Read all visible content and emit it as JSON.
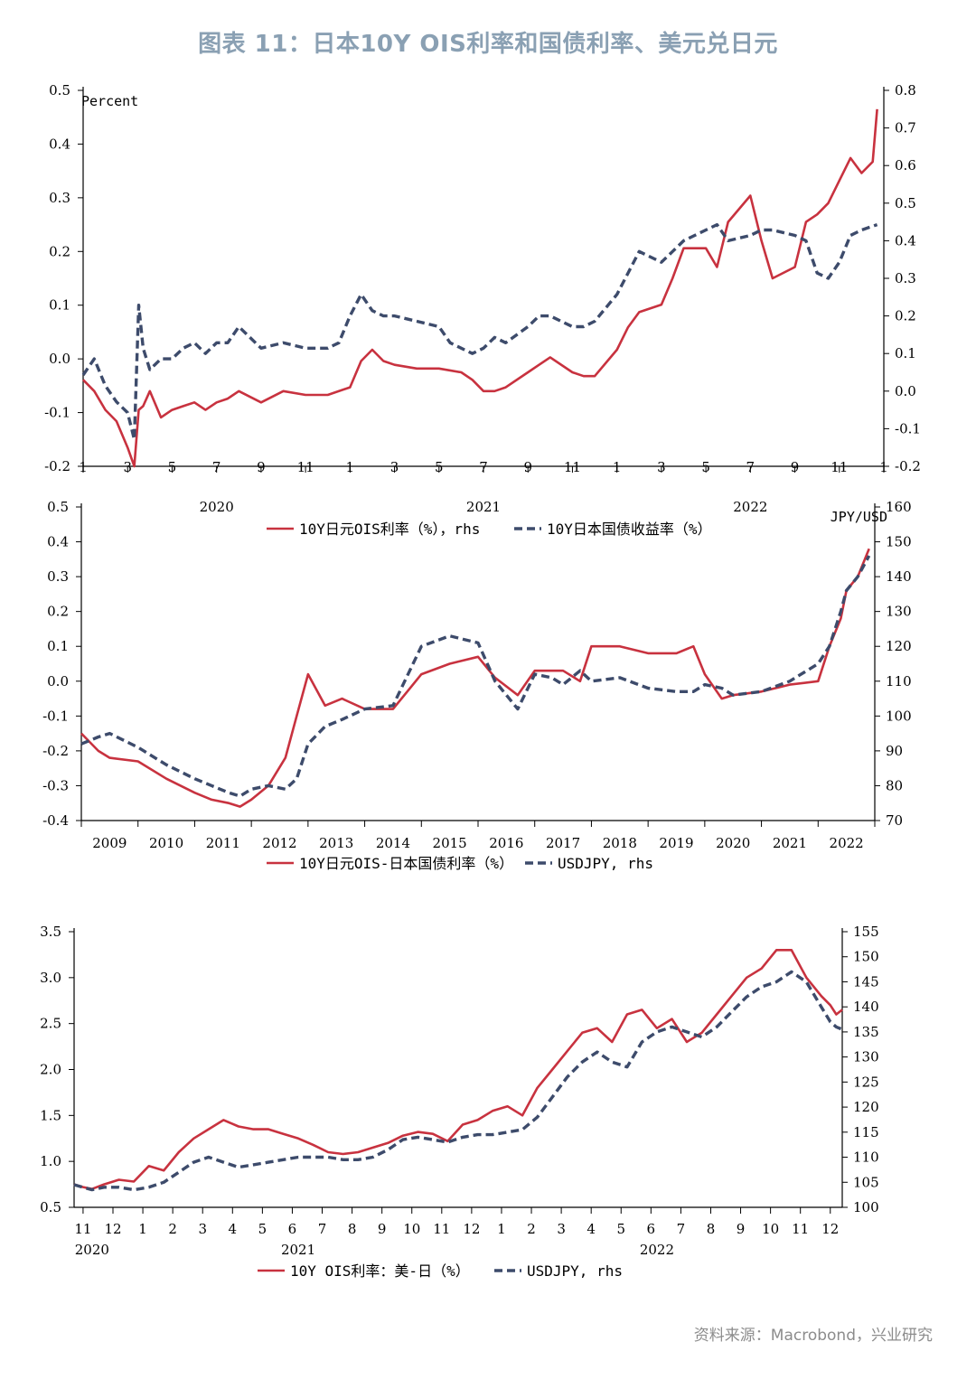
{
  "figure_title": "图表 11：日本10Y OIS利率和国债利率、美元兑日元",
  "source": "资料来源：Macrobond，兴业研究",
  "colors": {
    "red": "#c8323f",
    "blue": "#3d4b6b",
    "title": "#8aa0b3",
    "source": "#8c8c8c"
  },
  "chart_data": [
    {
      "type": "line",
      "left_unit_label": "Percent",
      "right_unit_label": "",
      "ylim": [
        -0.2,
        0.5
      ],
      "y2lim": [
        -0.2,
        0.8
      ],
      "yticks": [
        "0.5",
        "0.4",
        "0.3",
        "0.2",
        "0.1",
        "0.0",
        "-0.1",
        "-0.2"
      ],
      "y2ticks": [
        "0.8",
        "0.7",
        "0.6",
        "0.5",
        "0.4",
        "0.3",
        "0.2",
        "0.1",
        "0.0",
        "-0.1",
        "-0.2"
      ],
      "xlim": [
        0,
        36
      ],
      "xticks": [
        "1",
        "3",
        "5",
        "7",
        "9",
        "11",
        "1",
        "3",
        "5",
        "7",
        "9",
        "11",
        "1",
        "3",
        "5",
        "7",
        "9",
        "11",
        "1"
      ],
      "years": [
        {
          "label": "2020",
          "x": 6
        },
        {
          "label": "2021",
          "x": 18
        },
        {
          "label": "2022",
          "x": 30
        }
      ],
      "series": [
        {
          "name": "10Y日元OIS利率（%），rhs",
          "axis": "right",
          "style": "solid",
          "x": [
            0,
            0.5,
            1,
            1.5,
            2,
            2.3,
            2.5,
            2.7,
            3,
            3.5,
            4,
            4.5,
            5,
            5.5,
            6,
            6.5,
            7,
            8,
            9,
            10,
            11,
            12,
            12.5,
            13,
            13.5,
            14,
            15,
            16,
            17,
            17.5,
            18,
            18.5,
            19,
            20,
            20.5,
            21,
            22,
            22.5,
            23,
            24,
            24.5,
            25,
            26,
            26.5,
            27,
            28,
            28.5,
            29,
            30,
            30.5,
            31,
            32,
            32.5,
            33,
            33.5,
            34,
            34.5,
            35,
            35.5,
            35.7
          ],
          "y": [
            0.03,
            0.0,
            -0.05,
            -0.08,
            -0.15,
            -0.2,
            -0.05,
            -0.04,
            0.0,
            -0.07,
            -0.05,
            -0.04,
            -0.03,
            -0.05,
            -0.03,
            -0.02,
            0.0,
            -0.03,
            0.0,
            -0.01,
            -0.01,
            0.01,
            0.08,
            0.11,
            0.08,
            0.07,
            0.06,
            0.06,
            0.05,
            0.03,
            0.0,
            0.0,
            0.01,
            0.05,
            0.07,
            0.09,
            0.05,
            0.04,
            0.04,
            0.11,
            0.17,
            0.21,
            0.23,
            0.3,
            0.38,
            0.38,
            0.33,
            0.45,
            0.52,
            0.4,
            0.3,
            0.33,
            0.45,
            0.47,
            0.5,
            0.56,
            0.62,
            0.58,
            0.61,
            0.75
          ]
        },
        {
          "name": "10Y日本国债收益率（%）",
          "axis": "left",
          "style": "dash",
          "x": [
            0,
            0.5,
            1,
            1.5,
            2,
            2.3,
            2.5,
            2.7,
            3,
            3.5,
            4,
            4.5,
            5,
            5.5,
            6,
            6.5,
            7,
            8,
            9,
            10,
            11,
            11.5,
            12,
            12.5,
            13,
            13.5,
            14,
            15,
            16,
            16.5,
            17,
            17.5,
            18,
            18.5,
            19,
            20,
            20.5,
            21,
            22,
            22.5,
            23,
            24,
            24.5,
            25,
            26,
            26.5,
            27,
            28,
            28.5,
            29,
            30,
            30.5,
            31,
            32,
            32.5,
            33,
            33.5,
            34,
            34.5,
            35,
            35.7
          ],
          "y": [
            -0.03,
            0.0,
            -0.05,
            -0.08,
            -0.1,
            -0.15,
            0.1,
            0.02,
            -0.02,
            0.0,
            0.0,
            0.02,
            0.03,
            0.01,
            0.03,
            0.03,
            0.06,
            0.02,
            0.03,
            0.02,
            0.02,
            0.03,
            0.08,
            0.12,
            0.09,
            0.08,
            0.08,
            0.07,
            0.06,
            0.03,
            0.02,
            0.01,
            0.02,
            0.04,
            0.03,
            0.06,
            0.08,
            0.08,
            0.06,
            0.06,
            0.07,
            0.12,
            0.16,
            0.2,
            0.18,
            0.2,
            0.22,
            0.24,
            0.25,
            0.22,
            0.23,
            0.24,
            0.24,
            0.23,
            0.22,
            0.16,
            0.15,
            0.18,
            0.23,
            0.24,
            0.25
          ]
        }
      ],
      "legend": [
        {
          "label": "10Y日元OIS利率（%），rhs",
          "style": "solid"
        },
        {
          "label": "10Y日本国债收益率（%）",
          "style": "dash"
        }
      ]
    },
    {
      "type": "line",
      "left_unit_label": "",
      "right_unit_label": "JPY/USD",
      "ylim": [
        -0.4,
        0.5
      ],
      "y2lim": [
        70,
        160
      ],
      "yticks": [
        "0.5",
        "0.4",
        "0.3",
        "0.2",
        "0.1",
        "0.0",
        "-0.1",
        "-0.2",
        "-0.3",
        "-0.4"
      ],
      "y2ticks": [
        "160",
        "150",
        "140",
        "130",
        "120",
        "110",
        "100",
        "90",
        "80",
        "70"
      ],
      "xlim": [
        2009,
        2023
      ],
      "xticks": [
        "2009",
        "2010",
        "2011",
        "2012",
        "2013",
        "2014",
        "2015",
        "2016",
        "2017",
        "2018",
        "2019",
        "2020",
        "2021",
        "2022"
      ],
      "series": [
        {
          "name": "10Y日元OIS-日本国债利率（%）",
          "axis": "left",
          "style": "solid",
          "x": [
            2009,
            2009.3,
            2009.5,
            2010,
            2010.5,
            2011,
            2011.3,
            2011.6,
            2011.8,
            2012,
            2012.3,
            2012.6,
            2012.8,
            2013,
            2013.3,
            2013.6,
            2014,
            2014.5,
            2015,
            2015.5,
            2016,
            2016.3,
            2016.7,
            2017,
            2017.3,
            2017.5,
            2017.8,
            2018,
            2018.5,
            2019,
            2019.5,
            2019.8,
            2020,
            2020.3,
            2020.5,
            2021,
            2021.5,
            2022,
            2022.2,
            2022.4,
            2022.5,
            2022.7,
            2022.9
          ],
          "y": [
            -0.15,
            -0.2,
            -0.22,
            -0.23,
            -0.28,
            -0.32,
            -0.34,
            -0.35,
            -0.36,
            -0.34,
            -0.3,
            -0.22,
            -0.1,
            0.02,
            -0.07,
            -0.05,
            -0.08,
            -0.08,
            0.02,
            0.05,
            0.07,
            0.01,
            -0.04,
            0.03,
            0.03,
            0.03,
            0.0,
            0.1,
            0.1,
            0.08,
            0.08,
            0.1,
            0.02,
            -0.05,
            -0.04,
            -0.03,
            -0.01,
            0.0,
            0.1,
            0.18,
            0.26,
            0.3,
            0.38
          ]
        },
        {
          "name": "USDJPY, rhs",
          "axis": "right",
          "style": "dash",
          "x": [
            2009,
            2009.3,
            2009.5,
            2010,
            2010.5,
            2011,
            2011.3,
            2011.6,
            2011.8,
            2012,
            2012.3,
            2012.6,
            2012.8,
            2013,
            2013.3,
            2013.6,
            2014,
            2014.5,
            2015,
            2015.5,
            2016,
            2016.3,
            2016.7,
            2017,
            2017.3,
            2017.5,
            2017.8,
            2018,
            2018.5,
            2019,
            2019.5,
            2019.8,
            2020,
            2020.3,
            2020.5,
            2021,
            2021.5,
            2022,
            2022.2,
            2022.4,
            2022.5,
            2022.7,
            2022.9
          ],
          "y": [
            92,
            94,
            95,
            91,
            86,
            82,
            80,
            78,
            77,
            79,
            80,
            79,
            82,
            92,
            97,
            99,
            102,
            103,
            120,
            123,
            121,
            110,
            102,
            112,
            111,
            109,
            113,
            110,
            111,
            108,
            107,
            107,
            109,
            108,
            106,
            107,
            110,
            115,
            120,
            130,
            136,
            140,
            146
          ]
        }
      ],
      "legend": [
        {
          "label": "10Y日元OIS-日本国债利率（%）",
          "style": "solid"
        },
        {
          "label": "USDJPY, rhs",
          "style": "dash"
        }
      ]
    },
    {
      "type": "line",
      "left_unit_label": "",
      "right_unit_label": "",
      "ylim": [
        0.5,
        3.5
      ],
      "y2lim": [
        100,
        155
      ],
      "yticks": [
        "3.5",
        "3.0",
        "2.5",
        "2.0",
        "1.5",
        "1.0",
        "0.5"
      ],
      "y2ticks": [
        "155",
        "150",
        "145",
        "140",
        "135",
        "130",
        "125",
        "120",
        "115",
        "110",
        "105",
        "100"
      ],
      "xlim": [
        0,
        25.7
      ],
      "xticks": [
        "11",
        "12",
        "1",
        "2",
        "3",
        "4",
        "5",
        "6",
        "7",
        "8",
        "9",
        "10",
        "11",
        "12",
        "1",
        "2",
        "3",
        "4",
        "5",
        "6",
        "7",
        "8",
        "9",
        "10",
        "11",
        "12"
      ],
      "years": [
        {
          "label": "2020",
          "x": 0.6
        },
        {
          "label": "2021",
          "x": 7.5
        },
        {
          "label": "2022",
          "x": 19.5
        }
      ],
      "series": [
        {
          "name": "10Y OIS利率：美-日（%）",
          "axis": "left",
          "style": "solid",
          "x": [
            0,
            0.3,
            0.6,
            1,
            1.5,
            2,
            2.5,
            3,
            3.5,
            4,
            4.5,
            5,
            5.5,
            6,
            6.5,
            7,
            7.5,
            8,
            8.5,
            9,
            9.5,
            10,
            10.5,
            11,
            11.5,
            12,
            12.5,
            13,
            13.5,
            14,
            14.5,
            15,
            15.5,
            16,
            16.5,
            17,
            17.5,
            18,
            18.5,
            19,
            19.5,
            20,
            20.5,
            21,
            21.5,
            22,
            22.5,
            23,
            23.5,
            24,
            24.5,
            25,
            25.3,
            25.5,
            25.7
          ],
          "y": [
            0.75,
            0.72,
            0.7,
            0.75,
            0.8,
            0.78,
            0.95,
            0.9,
            1.1,
            1.25,
            1.35,
            1.45,
            1.38,
            1.35,
            1.35,
            1.3,
            1.25,
            1.18,
            1.1,
            1.08,
            1.1,
            1.15,
            1.2,
            1.28,
            1.32,
            1.3,
            1.22,
            1.4,
            1.45,
            1.55,
            1.6,
            1.5,
            1.8,
            2.0,
            2.2,
            2.4,
            2.45,
            2.3,
            2.6,
            2.65,
            2.45,
            2.55,
            2.3,
            2.4,
            2.6,
            2.8,
            3.0,
            3.1,
            3.3,
            3.3,
            3.0,
            2.8,
            2.7,
            2.6,
            2.65
          ]
        },
        {
          "name": "USDJPY, rhs",
          "axis": "right",
          "style": "dash",
          "x": [
            0,
            0.3,
            0.6,
            1,
            1.5,
            2,
            2.5,
            3,
            3.5,
            4,
            4.5,
            5,
            5.5,
            6,
            6.5,
            7,
            7.5,
            8,
            8.5,
            9,
            9.5,
            10,
            10.5,
            11,
            11.5,
            12,
            12.5,
            13,
            13.5,
            14,
            14.5,
            15,
            15.5,
            16,
            16.5,
            17,
            17.5,
            18,
            18.5,
            19,
            19.5,
            20,
            20.5,
            21,
            21.5,
            22,
            22.5,
            23,
            23.5,
            24,
            24.5,
            25,
            25.3,
            25.5,
            25.7
          ],
          "y": [
            104.5,
            104,
            103.5,
            104,
            104,
            103.5,
            104,
            105,
            107,
            109,
            110,
            109,
            108,
            108.5,
            109,
            109.5,
            110,
            110,
            110,
            109.5,
            109.5,
            110,
            111.5,
            113.5,
            114,
            113.5,
            113,
            114,
            114.5,
            114.5,
            115,
            115.5,
            118,
            122,
            126,
            129,
            131,
            129,
            128,
            133,
            135,
            136,
            135,
            134,
            136,
            139,
            142,
            144,
            145,
            147,
            145,
            140,
            137,
            136,
            135.5
          ]
        }
      ],
      "legend": [
        {
          "label": "10Y OIS利率：美-日（%）",
          "style": "solid"
        },
        {
          "label": "USDJPY, rhs",
          "style": "dash"
        }
      ]
    }
  ]
}
